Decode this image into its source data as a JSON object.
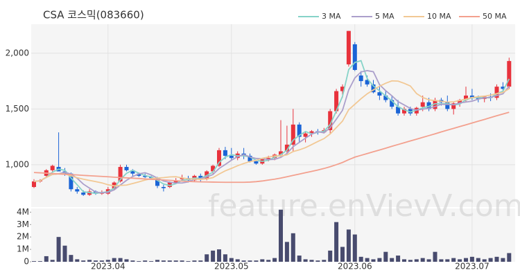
{
  "chart_data": {
    "type": "candlestick",
    "title": "CSA 코스믹(083660)",
    "watermark": "feature.enVievV.com",
    "categories": [
      null,
      null,
      null,
      null,
      null,
      null,
      null,
      null,
      null,
      null,
      null,
      null,
      "2023.04",
      null,
      null,
      null,
      null,
      null,
      null,
      null,
      null,
      null,
      null,
      null,
      null,
      null,
      null,
      null,
      null,
      null,
      null,
      null,
      "2023.05",
      null,
      null,
      null,
      null,
      null,
      null,
      null,
      null,
      null,
      null,
      null,
      null,
      null,
      null,
      null,
      null,
      null,
      null,
      null,
      "2023.06",
      null,
      null,
      null,
      null,
      null,
      null,
      null,
      null,
      null,
      null,
      null,
      null,
      null,
      null,
      null,
      null,
      null,
      null,
      "2023.07",
      null,
      null,
      null,
      null,
      null,
      null
    ],
    "open": [
      800,
      850,
      900,
      950,
      980,
      940,
      920,
      780,
      750,
      730,
      760,
      740,
      740,
      780,
      850,
      980,
      950,
      920,
      900,
      890,
      880,
      800,
      800,
      840,
      870,
      880,
      860,
      900,
      870,
      940,
      990,
      1130,
      1080,
      1060,
      1100,
      1080,
      1030,
      1010,
      1050,
      1060,
      1090,
      1120,
      1180,
      1360,
      1250,
      1280,
      1300,
      1290,
      1310,
      1480,
      1660,
      1900,
      2080,
      1800,
      1760,
      1720,
      1650,
      1620,
      1580,
      1520,
      1460,
      1500,
      1460,
      1520,
      1560,
      1500,
      1580,
      1560,
      1500,
      1550,
      1580,
      1620,
      1600,
      1590,
      1610,
      1600,
      1700,
      1700
    ],
    "high": [
      870,
      870,
      960,
      1000,
      1290,
      970,
      930,
      800,
      770,
      780,
      770,
      770,
      800,
      850,
      1000,
      1000,
      960,
      930,
      920,
      900,
      890,
      820,
      850,
      880,
      910,
      900,
      910,
      920,
      950,
      1000,
      1150,
      1160,
      1150,
      1120,
      1150,
      1100,
      1040,
      1060,
      1080,
      1100,
      1400,
      1350,
      1500,
      1380,
      1300,
      1310,
      1320,
      1330,
      1500,
      1680,
      1720,
      2200,
      2100,
      1840,
      1800,
      1760,
      1700,
      1660,
      1620,
      1580,
      1520,
      1520,
      1520,
      1620,
      1600,
      1600,
      1600,
      1620,
      1560,
      1590,
      1700,
      1680,
      1620,
      1620,
      1640,
      1720,
      1740,
      1960
    ],
    "low": [
      790,
      840,
      880,
      930,
      950,
      900,
      760,
      740,
      720,
      720,
      730,
      730,
      730,
      770,
      840,
      940,
      900,
      890,
      880,
      870,
      790,
      760,
      790,
      830,
      860,
      840,
      850,
      850,
      860,
      920,
      980,
      1050,
      1040,
      1040,
      1050,
      1020,
      1000,
      1000,
      1030,
      1040,
      1060,
      1100,
      1120,
      1200,
      1200,
      1250,
      1270,
      1280,
      1280,
      1460,
      1600,
      1880,
      1840,
      1700,
      1700,
      1640,
      1580,
      1560,
      1500,
      1440,
      1440,
      1440,
      1440,
      1480,
      1480,
      1480,
      1530,
      1480,
      1450,
      1520,
      1560,
      1580,
      1560,
      1560,
      1570,
      1580,
      1660,
      1680
    ],
    "close": [
      850,
      860,
      950,
      990,
      940,
      920,
      780,
      760,
      730,
      760,
      740,
      750,
      780,
      840,
      980,
      950,
      920,
      900,
      890,
      880,
      810,
      790,
      840,
      860,
      880,
      860,
      900,
      870,
      940,
      990,
      1130,
      1080,
      1060,
      1100,
      1080,
      1030,
      1010,
      1050,
      1060,
      1090,
      1120,
      1180,
      1360,
      1250,
      1280,
      1300,
      1290,
      1310,
      1480,
      1660,
      1700,
      2200,
      1850,
      1750,
      1720,
      1650,
      1620,
      1580,
      1520,
      1460,
      1500,
      1460,
      1510,
      1560,
      1500,
      1580,
      1560,
      1500,
      1550,
      1580,
      1620,
      1600,
      1590,
      1610,
      1600,
      1700,
      1680,
      1930
    ],
    "up_color": "#e8323c",
    "down_color": "#1a64d6",
    "ylim": [
      620,
      2260
    ],
    "yticks": [
      {
        "value": 1000,
        "label": "1,000"
      },
      {
        "value": 1500,
        "label": "1,500"
      },
      {
        "value": 2000,
        "label": "2,000"
      }
    ],
    "grid": true,
    "moving_averages": [
      {
        "name": "3 MA",
        "color": "#86d3c8",
        "values": [
          850,
          855,
          887,
          933,
          960,
          950,
          880,
          820,
          757,
          750,
          743,
          750,
          757,
          790,
          867,
          923,
          950,
          923,
          903,
          890,
          860,
          827,
          813,
          830,
          860,
          867,
          880,
          877,
          903,
          933,
          1020,
          1067,
          1090,
          1080,
          1080,
          1070,
          1040,
          1030,
          1040,
          1067,
          1090,
          1130,
          1220,
          1263,
          1297,
          1277,
          1290,
          1300,
          1360,
          1483,
          1613,
          1853,
          1917,
          1933,
          1773,
          1707,
          1663,
          1617,
          1573,
          1520,
          1493,
          1473,
          1490,
          1510,
          1523,
          1547,
          1547,
          1547,
          1537,
          1543,
          1583,
          1600,
          1603,
          1600,
          1600,
          1637,
          1660,
          1770
        ]
      },
      {
        "name": "5 MA",
        "color": "#ab9fcb",
        "values": [
          850,
          855,
          887,
          913,
          918,
          932,
          916,
          878,
          826,
          790,
          754,
          748,
          752,
          774,
          818,
          860,
          894,
          918,
          928,
          908,
          880,
          854,
          842,
          836,
          836,
          846,
          868,
          874,
          890,
          912,
          966,
          1002,
          1040,
          1072,
          1090,
          1070,
          1056,
          1054,
          1046,
          1048,
          1066,
          1100,
          1162,
          1200,
          1238,
          1274,
          1296,
          1286,
          1332,
          1408,
          1488,
          1670,
          1778,
          1832,
          1844,
          1834,
          1718,
          1664,
          1618,
          1566,
          1536,
          1504,
          1490,
          1498,
          1506,
          1522,
          1542,
          1540,
          1538,
          1554,
          1562,
          1570,
          1588,
          1600,
          1604,
          1620,
          1636,
          1704
        ]
      },
      {
        "name": "10 MA",
        "color": "#f2c894",
        "values": [
          850,
          855,
          887,
          913,
          918,
          918,
          900,
          883,
          870,
          859,
          848,
          837,
          820,
          810,
          814,
          817,
          831,
          846,
          862,
          874,
          880,
          884,
          890,
          892,
          882,
          873,
          871,
          868,
          873,
          884,
          916,
          945,
          967,
          991,
          1011,
          1028,
          1039,
          1057,
          1069,
          1079,
          1078,
          1088,
          1118,
          1133,
          1153,
          1180,
          1208,
          1234,
          1276,
          1333,
          1391,
          1493,
          1542,
          1592,
          1636,
          1671,
          1704,
          1731,
          1752,
          1750,
          1730,
          1706,
          1638,
          1603,
          1582,
          1575,
          1569,
          1561,
          1564,
          1576,
          1588,
          1602,
          1610,
          1615,
          1625,
          1637,
          1649,
          1681
        ]
      },
      {
        "name": "50 MA",
        "color": "#f3a08e",
        "values": [
          930,
          927,
          924,
          920,
          917,
          914,
          911,
          908,
          904,
          901,
          898,
          895,
          892,
          888,
          885,
          882,
          879,
          876,
          872,
          869,
          866,
          863,
          860,
          856,
          853,
          850,
          848,
          846,
          845,
          844,
          843,
          842,
          842,
          842,
          842,
          844,
          848,
          854,
          862,
          870,
          880,
          892,
          904,
          916,
          928,
          940,
          952,
          966,
          982,
          1000,
          1020,
          1045,
          1068,
          1084,
          1100,
          1116,
          1132,
          1148,
          1165,
          1181,
          1197,
          1213,
          1229,
          1245,
          1261,
          1277,
          1294,
          1310,
          1326,
          1342,
          1358,
          1374,
          1390,
          1406,
          1423,
          1439,
          1455,
          1470
        ]
      }
    ],
    "volume": {
      "color": "#484b6e",
      "values": [
        50000,
        50000,
        450000,
        150000,
        2000000,
        1300000,
        550000,
        200000,
        100000,
        150000,
        100000,
        100000,
        150000,
        300000,
        300000,
        200000,
        100000,
        50000,
        100000,
        50000,
        150000,
        100000,
        100000,
        100000,
        100000,
        50000,
        100000,
        100000,
        600000,
        900000,
        1000000,
        600000,
        300000,
        200000,
        100000,
        100000,
        100000,
        200000,
        150000,
        300000,
        4200000,
        1600000,
        2300000,
        500000,
        200000,
        150000,
        100000,
        150000,
        900000,
        3200000,
        1200000,
        2600000,
        2200000,
        400000,
        300000,
        200000,
        300000,
        800000,
        300000,
        500000,
        200000,
        150000,
        200000,
        300000,
        200000,
        800000,
        200000,
        200000,
        300000,
        200000,
        300000,
        400000,
        300000,
        200000,
        300000,
        400000,
        300000,
        700000
      ],
      "ylim": [
        0,
        4300000
      ],
      "yticks": [
        0,
        {
          "value": 1000000,
          "label": "1M"
        },
        {
          "value": 2000000,
          "label": "2M"
        },
        {
          "value": 3000000,
          "label": "3M"
        },
        {
          "value": 4000000,
          "label": "4M"
        }
      ]
    }
  }
}
